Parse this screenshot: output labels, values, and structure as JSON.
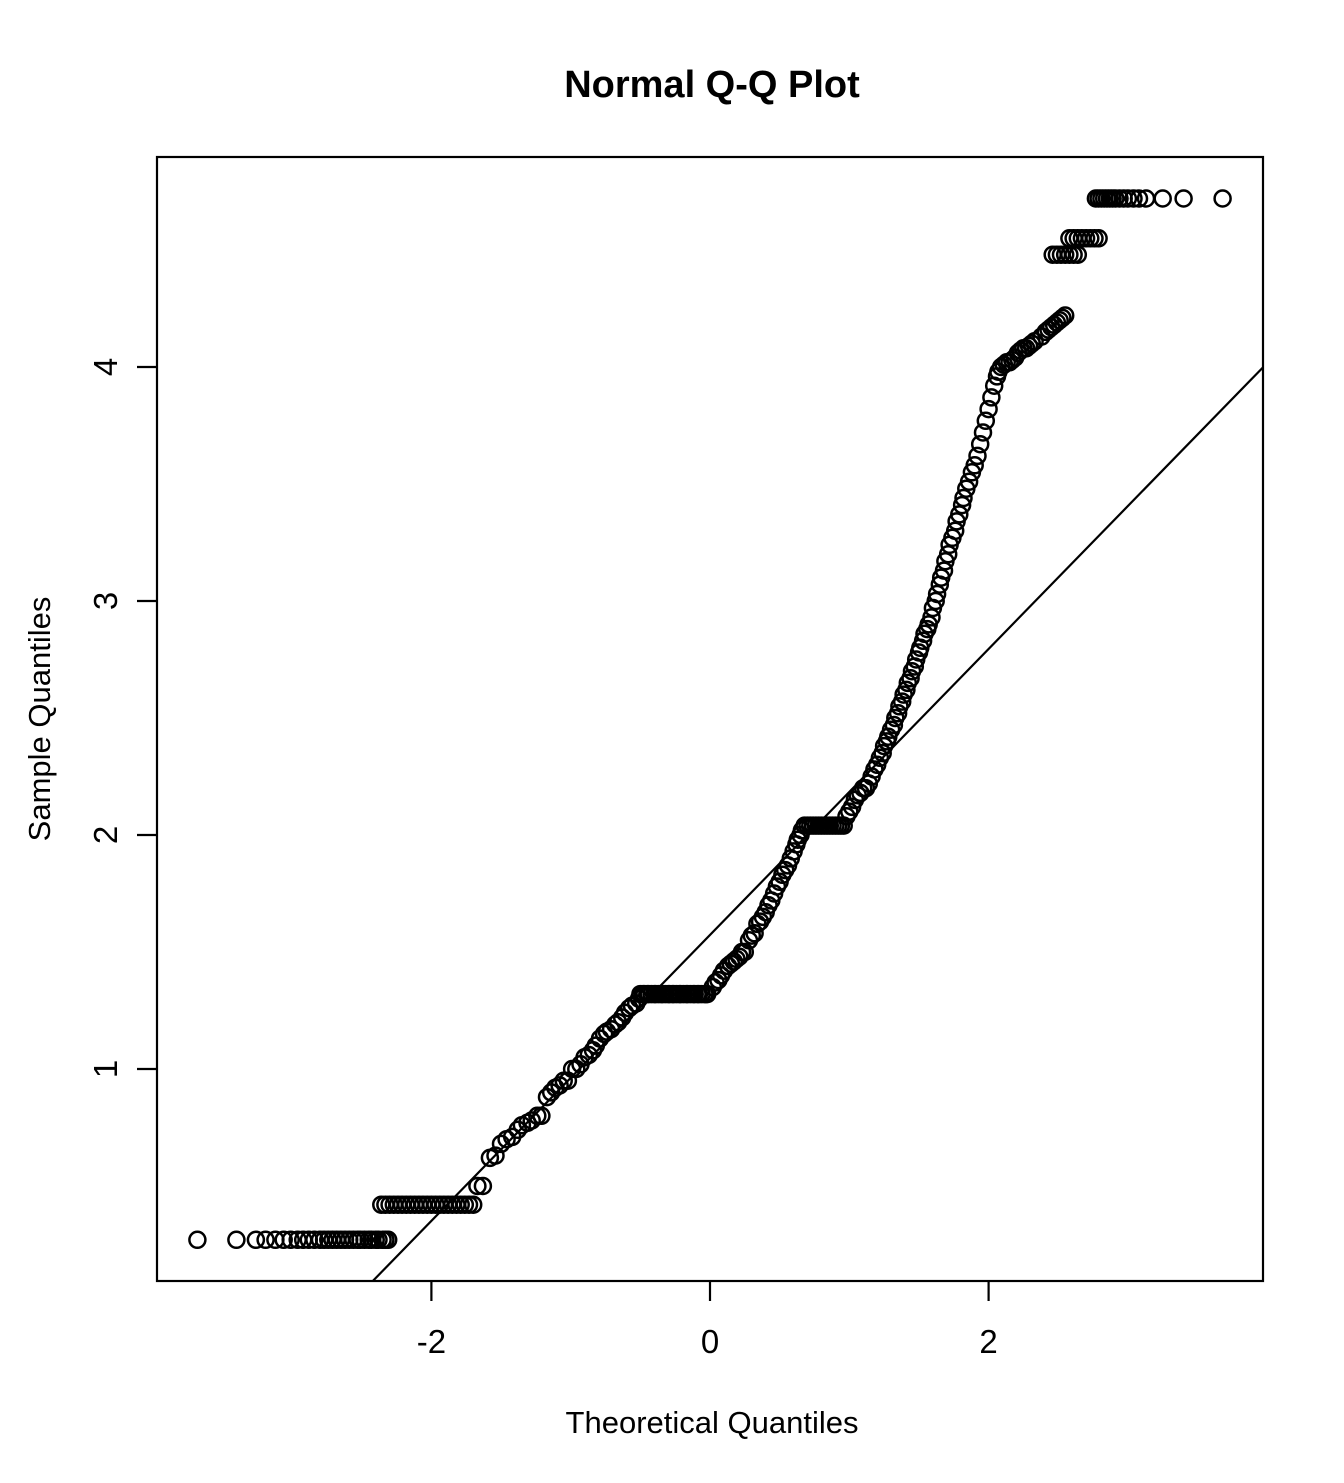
{
  "figure": {
    "title": "Normal Q-Q Plot",
    "x_axis_label": "Theoretical Quantiles",
    "y_axis_label": "Sample Quantiles"
  },
  "colors": {
    "foreground": "#000000",
    "background": "#ffffff"
  },
  "chart_data": {
    "type": "scatter",
    "title": "Normal Q-Q Plot",
    "xlabel": "Theoretical Quantiles",
    "ylabel": "Sample Quantiles",
    "x_ticks": [
      -2,
      0,
      2
    ],
    "y_ticks": [
      1,
      2,
      3,
      4
    ],
    "xlim": [
      -3.97,
      3.97
    ],
    "ylim": [
      0.09,
      4.9
    ],
    "grid": false,
    "legend": "none",
    "marker": "open-circle",
    "reference_line": {
      "slope": 0.611,
      "intercept": 1.573
    },
    "points": [
      [
        -3.68,
        0.27
      ],
      [
        -3.4,
        0.27
      ],
      [
        -3.26,
        0.27
      ],
      [
        -3.19,
        0.27
      ],
      [
        -3.12,
        0.27
      ],
      [
        -3.06,
        0.27
      ],
      [
        -3.01,
        0.27
      ],
      [
        -2.96,
        0.27
      ],
      [
        -2.92,
        0.27
      ],
      [
        -2.88,
        0.27
      ],
      [
        -2.84,
        0.27
      ],
      [
        -2.8,
        0.27
      ],
      [
        -2.77,
        0.27
      ],
      [
        -2.74,
        0.27
      ],
      [
        -2.71,
        0.27
      ],
      [
        -2.68,
        0.27
      ],
      [
        -2.65,
        0.27
      ],
      [
        -2.62,
        0.27
      ],
      [
        -2.59,
        0.27
      ],
      [
        -2.56,
        0.27
      ],
      [
        -2.53,
        0.27
      ],
      [
        -2.51,
        0.27
      ],
      [
        -2.48,
        0.27
      ],
      [
        -2.45,
        0.27
      ],
      [
        -2.43,
        0.27
      ],
      [
        -2.4,
        0.27
      ],
      [
        -2.38,
        0.27
      ],
      [
        -2.35,
        0.27
      ],
      [
        -2.33,
        0.27
      ],
      [
        -2.31,
        0.27
      ],
      [
        -2.36,
        0.42
      ],
      [
        -2.33,
        0.42
      ],
      [
        -2.3,
        0.42
      ],
      [
        -2.27,
        0.42
      ],
      [
        -2.24,
        0.42
      ],
      [
        -2.21,
        0.42
      ],
      [
        -2.18,
        0.42
      ],
      [
        -2.15,
        0.42
      ],
      [
        -2.12,
        0.42
      ],
      [
        -2.09,
        0.42
      ],
      [
        -2.06,
        0.42
      ],
      [
        -2.03,
        0.42
      ],
      [
        -2.0,
        0.42
      ],
      [
        -1.97,
        0.42
      ],
      [
        -1.94,
        0.42
      ],
      [
        -1.91,
        0.42
      ],
      [
        -1.88,
        0.42
      ],
      [
        -1.85,
        0.42
      ],
      [
        -1.82,
        0.42
      ],
      [
        -1.79,
        0.42
      ],
      [
        -1.76,
        0.42
      ],
      [
        -1.73,
        0.42
      ],
      [
        -1.7,
        0.42
      ],
      [
        -1.67,
        0.5
      ],
      [
        -1.63,
        0.5
      ],
      [
        -1.58,
        0.62
      ],
      [
        -1.54,
        0.63
      ],
      [
        -1.5,
        0.68
      ],
      [
        -1.46,
        0.7
      ],
      [
        -1.42,
        0.71
      ],
      [
        -1.38,
        0.74
      ],
      [
        -1.35,
        0.76
      ],
      [
        -1.31,
        0.77
      ],
      [
        -1.28,
        0.78
      ],
      [
        -1.24,
        0.8
      ],
      [
        -1.21,
        0.8
      ],
      [
        -1.17,
        0.88
      ],
      [
        -1.14,
        0.9
      ],
      [
        -1.11,
        0.92
      ],
      [
        -1.08,
        0.93
      ],
      [
        -1.05,
        0.95
      ],
      [
        -1.02,
        0.95
      ],
      [
        -0.99,
        1.0
      ],
      [
        -0.96,
        1.0
      ],
      [
        -0.93,
        1.02
      ],
      [
        -0.9,
        1.05
      ],
      [
        -0.87,
        1.06
      ],
      [
        -0.84,
        1.08
      ],
      [
        -0.82,
        1.1
      ],
      [
        -0.79,
        1.13
      ],
      [
        -0.76,
        1.15
      ],
      [
        -0.74,
        1.16
      ],
      [
        -0.71,
        1.17
      ],
      [
        -0.68,
        1.19
      ],
      [
        -0.66,
        1.2
      ],
      [
        -0.63,
        1.22
      ],
      [
        -0.61,
        1.24
      ],
      [
        -0.58,
        1.26
      ],
      [
        -0.56,
        1.27
      ],
      [
        -0.53,
        1.28
      ],
      [
        -0.51,
        1.3
      ],
      [
        -0.5,
        1.32
      ],
      [
        -0.48,
        1.32
      ],
      [
        -0.47,
        1.32
      ],
      [
        -0.45,
        1.32
      ],
      [
        -0.44,
        1.32
      ],
      [
        -0.42,
        1.32
      ],
      [
        -0.4,
        1.32
      ],
      [
        -0.39,
        1.32
      ],
      [
        -0.37,
        1.32
      ],
      [
        -0.35,
        1.32
      ],
      [
        -0.34,
        1.32
      ],
      [
        -0.32,
        1.32
      ],
      [
        -0.3,
        1.32
      ],
      [
        -0.29,
        1.32
      ],
      [
        -0.27,
        1.32
      ],
      [
        -0.26,
        1.32
      ],
      [
        -0.24,
        1.32
      ],
      [
        -0.22,
        1.32
      ],
      [
        -0.21,
        1.32
      ],
      [
        -0.19,
        1.32
      ],
      [
        -0.17,
        1.32
      ],
      [
        -0.16,
        1.32
      ],
      [
        -0.14,
        1.32
      ],
      [
        -0.12,
        1.32
      ],
      [
        -0.11,
        1.32
      ],
      [
        -0.09,
        1.32
      ],
      [
        -0.08,
        1.32
      ],
      [
        -0.06,
        1.32
      ],
      [
        -0.04,
        1.32
      ],
      [
        -0.03,
        1.32
      ],
      [
        -0.02,
        1.32
      ],
      [
        0.02,
        1.35
      ],
      [
        0.04,
        1.37
      ],
      [
        0.06,
        1.38
      ],
      [
        0.08,
        1.4
      ],
      [
        0.1,
        1.42
      ],
      [
        0.13,
        1.44
      ],
      [
        0.15,
        1.45
      ],
      [
        0.17,
        1.46
      ],
      [
        0.19,
        1.47
      ],
      [
        0.21,
        1.48
      ],
      [
        0.23,
        1.5
      ],
      [
        0.25,
        1.5
      ],
      [
        0.28,
        1.55
      ],
      [
        0.3,
        1.57
      ],
      [
        0.32,
        1.58
      ],
      [
        0.34,
        1.62
      ],
      [
        0.36,
        1.63
      ],
      [
        0.38,
        1.65
      ],
      [
        0.4,
        1.67
      ],
      [
        0.42,
        1.7
      ],
      [
        0.44,
        1.72
      ],
      [
        0.46,
        1.75
      ],
      [
        0.48,
        1.78
      ],
      [
        0.5,
        1.8
      ],
      [
        0.52,
        1.83
      ],
      [
        0.54,
        1.85
      ],
      [
        0.56,
        1.87
      ],
      [
        0.58,
        1.9
      ],
      [
        0.6,
        1.93
      ],
      [
        0.62,
        1.96
      ],
      [
        0.63,
        1.98
      ],
      [
        0.65,
        2.0
      ],
      [
        0.66,
        2.02
      ],
      [
        0.68,
        2.04
      ],
      [
        0.7,
        2.04
      ],
      [
        0.72,
        2.04
      ],
      [
        0.74,
        2.04
      ],
      [
        0.76,
        2.04
      ],
      [
        0.78,
        2.04
      ],
      [
        0.8,
        2.04
      ],
      [
        0.82,
        2.04
      ],
      [
        0.84,
        2.04
      ],
      [
        0.86,
        2.04
      ],
      [
        0.88,
        2.04
      ],
      [
        0.9,
        2.04
      ],
      [
        0.92,
        2.04
      ],
      [
        0.94,
        2.04
      ],
      [
        0.96,
        2.04
      ],
      [
        0.98,
        2.08
      ],
      [
        1.0,
        2.1
      ],
      [
        1.02,
        2.12
      ],
      [
        1.04,
        2.15
      ],
      [
        1.06,
        2.17
      ],
      [
        1.08,
        2.18
      ],
      [
        1.1,
        2.2
      ],
      [
        1.12,
        2.2
      ],
      [
        1.14,
        2.22
      ],
      [
        1.16,
        2.25
      ],
      [
        1.18,
        2.28
      ],
      [
        1.2,
        2.3
      ],
      [
        1.22,
        2.33
      ],
      [
        1.24,
        2.35
      ],
      [
        1.25,
        2.38
      ],
      [
        1.27,
        2.4
      ],
      [
        1.28,
        2.42
      ],
      [
        1.3,
        2.45
      ],
      [
        1.32,
        2.47
      ],
      [
        1.33,
        2.5
      ],
      [
        1.35,
        2.52
      ],
      [
        1.36,
        2.55
      ],
      [
        1.38,
        2.57
      ],
      [
        1.39,
        2.6
      ],
      [
        1.41,
        2.62
      ],
      [
        1.42,
        2.65
      ],
      [
        1.44,
        2.67
      ],
      [
        1.45,
        2.7
      ],
      [
        1.47,
        2.72
      ],
      [
        1.48,
        2.75
      ],
      [
        1.5,
        2.78
      ],
      [
        1.51,
        2.8
      ],
      [
        1.53,
        2.83
      ],
      [
        1.54,
        2.86
      ],
      [
        1.56,
        2.88
      ],
      [
        1.57,
        2.9
      ],
      [
        1.59,
        2.93
      ],
      [
        1.6,
        2.97
      ],
      [
        1.62,
        3.0
      ],
      [
        1.63,
        3.03
      ],
      [
        1.65,
        3.07
      ],
      [
        1.66,
        3.1
      ],
      [
        1.68,
        3.13
      ],
      [
        1.69,
        3.17
      ],
      [
        1.71,
        3.2
      ],
      [
        1.72,
        3.24
      ],
      [
        1.74,
        3.27
      ],
      [
        1.76,
        3.3
      ],
      [
        1.77,
        3.34
      ],
      [
        1.79,
        3.37
      ],
      [
        1.81,
        3.41
      ],
      [
        1.82,
        3.44
      ],
      [
        1.84,
        3.48
      ],
      [
        1.86,
        3.51
      ],
      [
        1.88,
        3.55
      ],
      [
        1.9,
        3.58
      ],
      [
        1.92,
        3.62
      ],
      [
        1.94,
        3.67
      ],
      [
        1.96,
        3.72
      ],
      [
        1.98,
        3.77
      ],
      [
        2.0,
        3.82
      ],
      [
        2.02,
        3.87
      ],
      [
        2.04,
        3.92
      ],
      [
        2.06,
        3.96
      ],
      [
        2.07,
        3.98
      ],
      [
        2.09,
        4.0
      ],
      [
        2.11,
        4.01
      ],
      [
        2.13,
        4.02
      ],
      [
        2.15,
        4.02
      ],
      [
        2.17,
        4.03
      ],
      [
        2.19,
        4.04
      ],
      [
        2.21,
        4.06
      ],
      [
        2.23,
        4.07
      ],
      [
        2.25,
        4.08
      ],
      [
        2.27,
        4.08
      ],
      [
        2.29,
        4.09
      ],
      [
        2.31,
        4.1
      ],
      [
        2.33,
        4.11
      ],
      [
        2.38,
        4.13
      ],
      [
        2.41,
        4.15
      ],
      [
        2.43,
        4.16
      ],
      [
        2.45,
        4.17
      ],
      [
        2.47,
        4.18
      ],
      [
        2.49,
        4.19
      ],
      [
        2.51,
        4.2
      ],
      [
        2.53,
        4.21
      ],
      [
        2.55,
        4.22
      ],
      [
        2.46,
        4.48
      ],
      [
        2.49,
        4.48
      ],
      [
        2.52,
        4.48
      ],
      [
        2.55,
        4.48
      ],
      [
        2.58,
        4.48
      ],
      [
        2.61,
        4.48
      ],
      [
        2.64,
        4.48
      ],
      [
        2.58,
        4.55
      ],
      [
        2.61,
        4.55
      ],
      [
        2.64,
        4.55
      ],
      [
        2.67,
        4.55
      ],
      [
        2.7,
        4.55
      ],
      [
        2.73,
        4.55
      ],
      [
        2.76,
        4.55
      ],
      [
        2.79,
        4.55
      ],
      [
        2.77,
        4.72
      ],
      [
        2.79,
        4.72
      ],
      [
        2.81,
        4.72
      ],
      [
        2.83,
        4.72
      ],
      [
        2.85,
        4.72
      ],
      [
        2.87,
        4.72
      ],
      [
        2.89,
        4.72
      ],
      [
        2.91,
        4.72
      ],
      [
        2.94,
        4.72
      ],
      [
        2.97,
        4.72
      ],
      [
        3.0,
        4.72
      ],
      [
        3.04,
        4.72
      ],
      [
        3.08,
        4.72
      ],
      [
        3.13,
        4.72
      ],
      [
        3.25,
        4.72
      ],
      [
        3.4,
        4.72
      ],
      [
        3.68,
        4.72
      ]
    ]
  }
}
